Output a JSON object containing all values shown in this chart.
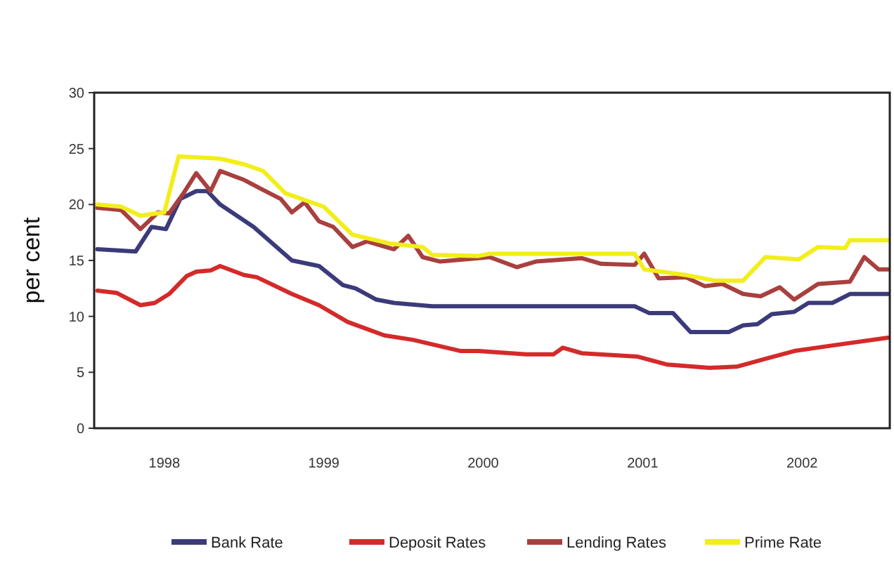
{
  "chart_data": {
    "type": "line",
    "ylabel": "per cent",
    "xlim": [
      1997.56,
      2002.55
    ],
    "xticks": [
      1998,
      1999,
      2000,
      2001,
      2002
    ],
    "ylim": [
      0,
      30
    ],
    "yticks": [
      0,
      5,
      10,
      15,
      20,
      25,
      30
    ],
    "grid": false,
    "legend": "bottom",
    "marker": "none",
    "line_style": "solid",
    "series": [
      {
        "name": "Bank Rate",
        "color": "#3b3a7a",
        "x": [
          1997.58,
          1997.82,
          1997.92,
          1998.01,
          1998.1,
          1998.2,
          1998.27,
          1998.35,
          1998.56,
          1998.8,
          1998.97,
          1999.12,
          1999.2,
          1999.33,
          1999.44,
          1999.68,
          1999.97,
          2000.95,
          2001.04,
          2001.19,
          2001.3,
          2001.54,
          2001.63,
          2001.72,
          2001.81,
          2001.95,
          2002.04,
          2002.19,
          2002.3,
          2002.54
        ],
        "values": [
          16,
          15.8,
          18,
          17.8,
          20.5,
          21.2,
          21.2,
          20,
          18,
          15,
          14.5,
          12.8,
          12.5,
          11.5,
          11.2,
          10.9,
          10.9,
          10.9,
          10.3,
          10.3,
          8.6,
          8.6,
          9.2,
          9.3,
          10.2,
          10.4,
          11.2,
          11.2,
          12,
          12
        ]
      },
      {
        "name": "Deposit Rates",
        "color": "#d42a2a",
        "x": [
          1997.58,
          1997.7,
          1997.85,
          1997.94,
          1998.03,
          1998.14,
          1998.2,
          1998.29,
          1998.35,
          1998.5,
          1998.58,
          1998.8,
          1998.97,
          1999.15,
          1999.38,
          1999.56,
          1999.86,
          1999.97,
          2000.27,
          2000.44,
          2000.5,
          2000.62,
          2000.97,
          2001.15,
          2001.42,
          2001.59,
          2001.77,
          2001.95,
          2002.19,
          2002.54
        ],
        "values": [
          12.3,
          12.1,
          11,
          11.2,
          12,
          13.6,
          14,
          14.1,
          14.5,
          13.7,
          13.5,
          12,
          11,
          9.5,
          8.3,
          7.9,
          6.9,
          6.9,
          6.6,
          6.6,
          7.2,
          6.7,
          6.4,
          5.7,
          5.4,
          5.5,
          6.2,
          6.9,
          7.4,
          8.1
        ]
      },
      {
        "name": "Lending Rates",
        "color": "#a8403f",
        "x": [
          1997.58,
          1997.73,
          1997.85,
          1997.96,
          1998.03,
          1998.12,
          1998.2,
          1998.29,
          1998.35,
          1998.5,
          1998.62,
          1998.73,
          1998.8,
          1998.88,
          1998.97,
          1999.06,
          1999.18,
          1999.27,
          1999.44,
          1999.53,
          1999.62,
          1999.73,
          1999.97,
          2000.04,
          2000.21,
          2000.33,
          2000.62,
          2000.74,
          2000.95,
          2001.01,
          2001.1,
          2001.27,
          2001.39,
          2001.5,
          2001.63,
          2001.74,
          2001.86,
          2001.95,
          2002.1,
          2002.3,
          2002.39,
          2002.48,
          2002.54
        ],
        "values": [
          19.7,
          19.5,
          17.8,
          19.3,
          19.2,
          21,
          22.8,
          21.2,
          23,
          22.2,
          21.3,
          20.5,
          19.3,
          20.2,
          18.5,
          18,
          16.2,
          16.7,
          16,
          17.2,
          15.3,
          14.9,
          15.2,
          15.3,
          14.4,
          14.9,
          15.2,
          14.7,
          14.6,
          15.6,
          13.4,
          13.5,
          12.7,
          12.9,
          12,
          11.8,
          12.6,
          11.5,
          12.9,
          13.1,
          15.3,
          14.2,
          14.2
        ]
      },
      {
        "name": "Prime Rate",
        "color": "#f2ee1a",
        "x": [
          1997.58,
          1997.73,
          1997.85,
          1998.0,
          1998.09,
          1998.35,
          1998.5,
          1998.62,
          1998.76,
          1999.0,
          1999.18,
          1999.42,
          1999.62,
          1999.68,
          1999.97,
          2000.04,
          2000.95,
          2001.01,
          2001.27,
          2001.45,
          2001.63,
          2001.77,
          2001.98,
          2002.1,
          2002.27,
          2002.3,
          2002.54
        ],
        "values": [
          20,
          19.8,
          19,
          19.3,
          24.3,
          24.1,
          23.6,
          23,
          21,
          19.8,
          17.3,
          16.5,
          16.2,
          15.5,
          15.4,
          15.6,
          15.6,
          14.2,
          13.7,
          13.2,
          13.2,
          15.3,
          15.1,
          16.2,
          16.1,
          16.8,
          16.8
        ]
      }
    ]
  }
}
